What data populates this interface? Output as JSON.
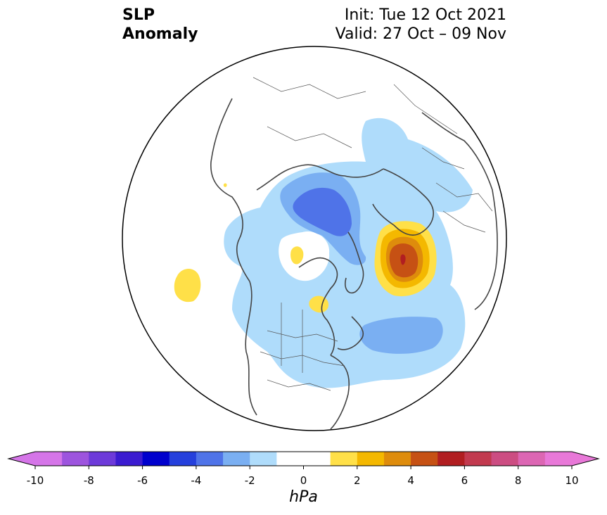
{
  "title": {
    "variable": "SLP",
    "kind": "Anomaly",
    "init": "Init: Tue 12 Oct 2021",
    "valid": "Valid: 27 Oct – 09 Nov"
  },
  "colorbar": {
    "unit": "hPa",
    "ticks": [
      "-10",
      "-8",
      "-6",
      "-4",
      "-2",
      "0",
      "2",
      "4",
      "6",
      "8",
      "10"
    ],
    "colors": [
      "#d575e8",
      "#9d54de",
      "#6d3ad9",
      "#3b1bd0",
      "#0000cd",
      "#2540dc",
      "#4f73e8",
      "#7aaff2",
      "#afdcfb",
      "#ffffff",
      "#ffffff",
      "#ffe048",
      "#f4b800",
      "#de8c0c",
      "#c65114",
      "#b11e21",
      "#c23a4f",
      "#cc4d82",
      "#dc66b3",
      "#e878d8"
    ],
    "over_color": "#e878d8",
    "under_color": "#d575e8"
  },
  "map": {
    "projection": "north-polar-stereographic",
    "palette": {
      "blue_light": "#afdcfb",
      "blue_mid": "#7aaff2",
      "blue_dark": "#4f73e8",
      "yellow": "#ffe048",
      "gold": "#f4b800",
      "orange": "#de8c0c",
      "rust": "#c65114",
      "red": "#b11e21"
    }
  }
}
